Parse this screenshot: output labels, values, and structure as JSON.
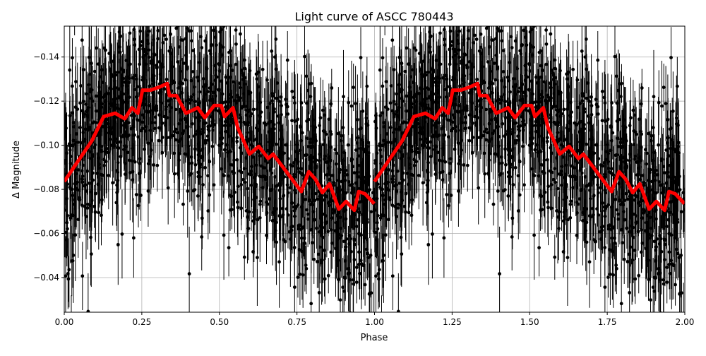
{
  "chart_data": {
    "type": "scatter",
    "title": "Light curve of ASCC 780443",
    "xlabel": "Phase",
    "ylabel": "Δ Magnitude",
    "xlim": [
      0,
      2
    ],
    "ylim": [
      -0.154,
      -0.0243
    ],
    "y_inverted": true,
    "grid": true,
    "xticks": [
      "0.00",
      "0.25",
      "0.50",
      "0.75",
      "1.00",
      "1.25",
      "1.50",
      "1.75",
      "2.00"
    ],
    "yticks": [
      "−0.14",
      "−0.12",
      "−0.10",
      "−0.08",
      "−0.06",
      "−0.04"
    ],
    "ytick_values": [
      -0.14,
      -0.12,
      -0.1,
      -0.08,
      -0.06,
      -0.04
    ],
    "xtick_values": [
      0,
      0.25,
      0.5,
      0.75,
      1.0,
      1.25,
      1.5,
      1.75,
      2.0
    ],
    "series": [
      {
        "kind": "errorbar-points",
        "color": "#000000",
        "period_repeat": true
      },
      {
        "kind": "binned-curve",
        "color": "#ff0000",
        "period_repeat": true,
        "phase": [
          0,
          0.05,
          0.089,
          0.127,
          0.164,
          0.195,
          0.218,
          0.237,
          0.252,
          0.278,
          0.309,
          0.332,
          0.339,
          0.362,
          0.392,
          0.43,
          0.453,
          0.483,
          0.506,
          0.517,
          0.544,
          0.559,
          0.597,
          0.627,
          0.657,
          0.673,
          0.764,
          0.788,
          0.81,
          0.832,
          0.855,
          0.885,
          0.908,
          0.935,
          0.949,
          0.969,
          0.999
        ],
        "magnitude": [
          -0.0835,
          -0.094,
          -0.102,
          -0.113,
          -0.1145,
          -0.112,
          -0.117,
          -0.1145,
          -0.125,
          -0.125,
          -0.1265,
          -0.128,
          -0.1225,
          -0.1225,
          -0.1145,
          -0.117,
          -0.1125,
          -0.118,
          -0.118,
          -0.113,
          -0.117,
          -0.108,
          -0.096,
          -0.0995,
          -0.094,
          -0.096,
          -0.079,
          -0.088,
          -0.0845,
          -0.0785,
          -0.0825,
          -0.071,
          -0.0745,
          -0.0705,
          -0.079,
          -0.078,
          -0.0735
        ]
      }
    ]
  }
}
